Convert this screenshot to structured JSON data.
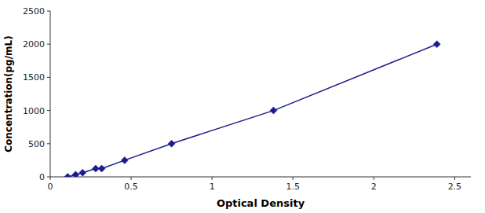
{
  "chart_data": {
    "type": "line",
    "x_label": "Optical Density",
    "y_label": "Concentration(pg/mL)",
    "x": [
      0.108,
      0.157,
      0.2,
      0.281,
      0.318,
      0.46,
      0.75,
      1.38,
      2.39
    ],
    "values": [
      0,
      31.25,
      62.5,
      125,
      125,
      250,
      500,
      1000,
      2000
    ],
    "color": "#1c1c8f",
    "marker": "diamond",
    "xlim": [
      0.0,
      2.6
    ],
    "ylim": [
      0,
      2500
    ],
    "xticks": [
      0,
      0.5,
      1,
      1.5,
      2,
      2.5
    ],
    "yticks": [
      0,
      500,
      1000,
      1500,
      2000,
      2500
    ],
    "grid": false
  }
}
